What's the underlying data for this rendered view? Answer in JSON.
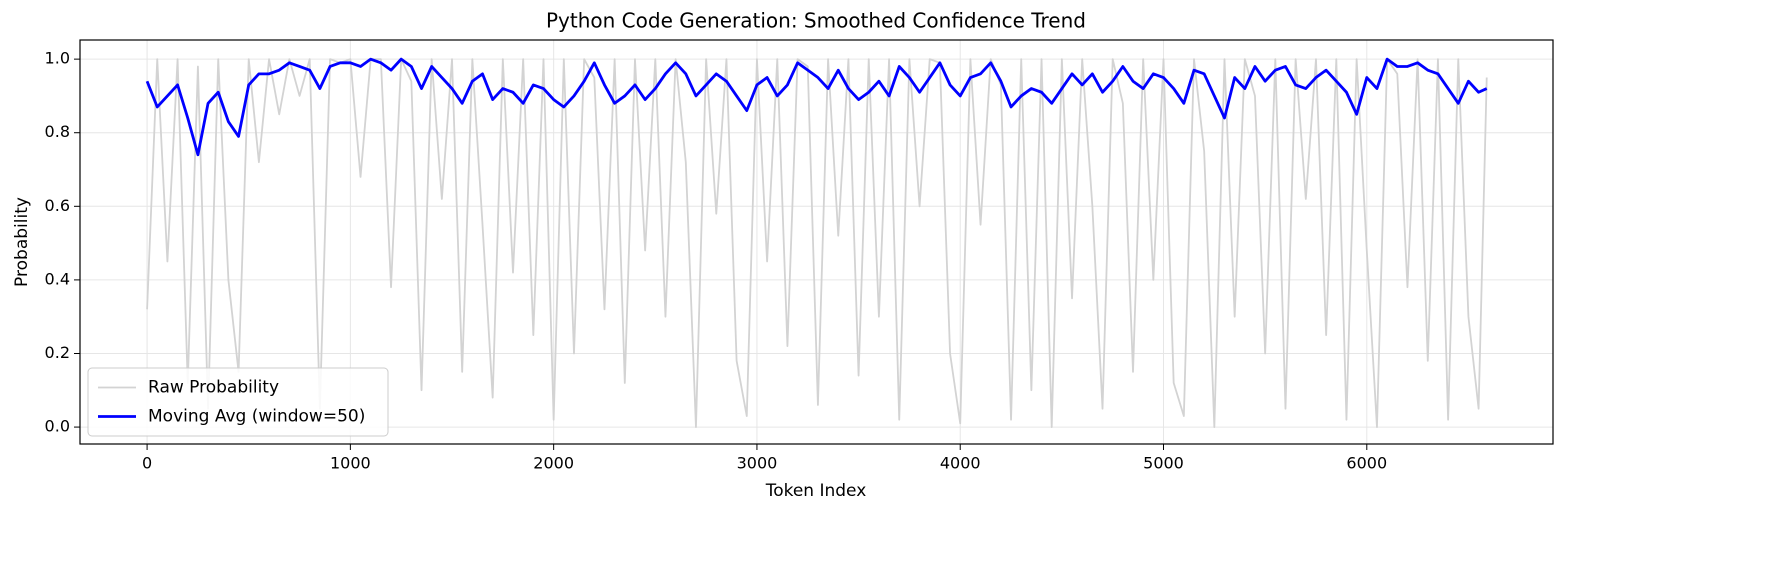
{
  "chart_data": {
    "type": "line",
    "title": "Python Code Generation: Smoothed Confidence Trend",
    "x_label": "Token Index",
    "y_label": "Probability",
    "x": [
      0,
      50,
      100,
      150,
      200,
      250,
      300,
      350,
      400,
      450,
      500,
      550,
      600,
      650,
      700,
      750,
      800,
      850,
      900,
      950,
      1000,
      1050,
      1100,
      1150,
      1200,
      1250,
      1300,
      1350,
      1400,
      1450,
      1500,
      1550,
      1600,
      1650,
      1700,
      1750,
      1800,
      1850,
      1900,
      1950,
      2000,
      2050,
      2100,
      2150,
      2200,
      2250,
      2300,
      2350,
      2400,
      2450,
      2500,
      2550,
      2600,
      2650,
      2700,
      2750,
      2800,
      2850,
      2900,
      2950,
      3000,
      3050,
      3100,
      3150,
      3200,
      3250,
      3300,
      3350,
      3400,
      3450,
      3500,
      3550,
      3600,
      3650,
      3700,
      3750,
      3800,
      3850,
      3900,
      3950,
      4000,
      4050,
      4100,
      4150,
      4200,
      4250,
      4300,
      4350,
      4400,
      4450,
      4500,
      4550,
      4600,
      4650,
      4700,
      4750,
      4800,
      4850,
      4900,
      4950,
      5000,
      5050,
      5100,
      5150,
      5200,
      5250,
      5300,
      5350,
      5400,
      5450,
      5500,
      5550,
      5600,
      5650,
      5700,
      5750,
      5800,
      5850,
      5900,
      5950,
      6000,
      6050,
      6100,
      6150,
      6200,
      6250,
      6300,
      6350,
      6400,
      6450,
      6500,
      6550,
      6590
    ],
    "series": [
      {
        "name": "Raw Probability",
        "color": "#d3d3d3",
        "values": [
          0.32,
          1.0,
          0.45,
          1.0,
          0.12,
          0.98,
          0.05,
          1.0,
          0.4,
          0.15,
          1.0,
          0.72,
          1.0,
          0.85,
          1.0,
          0.9,
          1.0,
          0.05,
          1.0,
          0.99,
          1.0,
          0.68,
          1.0,
          1.0,
          0.38,
          1.0,
          0.94,
          0.1,
          1.0,
          0.62,
          1.0,
          0.15,
          1.0,
          0.55,
          0.08,
          1.0,
          0.42,
          1.0,
          0.25,
          1.0,
          0.02,
          1.0,
          0.2,
          1.0,
          0.95,
          0.32,
          1.0,
          0.12,
          1.0,
          0.48,
          1.0,
          0.3,
          1.0,
          0.72,
          0.0,
          1.0,
          0.58,
          1.0,
          0.18,
          0.03,
          1.0,
          0.45,
          1.0,
          0.22,
          1.0,
          0.98,
          0.06,
          1.0,
          0.52,
          1.0,
          0.14,
          1.0,
          0.3,
          1.0,
          0.02,
          1.0,
          0.6,
          1.0,
          0.99,
          0.2,
          0.01,
          1.0,
          0.55,
          1.0,
          0.93,
          0.02,
          1.0,
          0.1,
          1.0,
          0.0,
          1.0,
          0.35,
          1.0,
          0.6,
          0.05,
          1.0,
          0.88,
          0.15,
          1.0,
          0.4,
          1.0,
          0.12,
          0.03,
          1.0,
          0.75,
          0.0,
          1.0,
          0.3,
          1.0,
          0.9,
          0.2,
          1.0,
          0.05,
          1.0,
          0.62,
          1.0,
          0.25,
          1.0,
          0.02,
          1.0,
          0.48,
          0.0,
          1.0,
          0.96,
          0.38,
          1.0,
          0.18,
          1.0,
          0.02,
          1.0,
          0.3,
          0.05,
          0.95
        ]
      },
      {
        "name": "Moving Avg (window=50)",
        "color": "#0000ff",
        "values": [
          0.94,
          0.87,
          0.9,
          0.93,
          0.84,
          0.74,
          0.88,
          0.91,
          0.83,
          0.79,
          0.93,
          0.96,
          0.96,
          0.97,
          0.99,
          0.98,
          0.97,
          0.92,
          0.98,
          0.99,
          0.99,
          0.98,
          1.0,
          0.99,
          0.97,
          1.0,
          0.98,
          0.92,
          0.98,
          0.95,
          0.92,
          0.88,
          0.94,
          0.96,
          0.89,
          0.92,
          0.91,
          0.88,
          0.93,
          0.92,
          0.89,
          0.87,
          0.9,
          0.94,
          0.99,
          0.93,
          0.88,
          0.9,
          0.93,
          0.89,
          0.92,
          0.96,
          0.99,
          0.96,
          0.9,
          0.93,
          0.96,
          0.94,
          0.9,
          0.86,
          0.93,
          0.95,
          0.9,
          0.93,
          0.99,
          0.97,
          0.95,
          0.92,
          0.97,
          0.92,
          0.89,
          0.91,
          0.94,
          0.9,
          0.98,
          0.95,
          0.91,
          0.95,
          0.99,
          0.93,
          0.9,
          0.95,
          0.96,
          0.99,
          0.94,
          0.87,
          0.9,
          0.92,
          0.91,
          0.88,
          0.92,
          0.96,
          0.93,
          0.96,
          0.91,
          0.94,
          0.98,
          0.94,
          0.92,
          0.96,
          0.95,
          0.92,
          0.88,
          0.97,
          0.96,
          0.9,
          0.84,
          0.95,
          0.92,
          0.98,
          0.94,
          0.97,
          0.98,
          0.93,
          0.92,
          0.95,
          0.97,
          0.94,
          0.91,
          0.85,
          0.95,
          0.92,
          1.0,
          0.98,
          0.98,
          0.99,
          0.97,
          0.96,
          0.92,
          0.88,
          0.94,
          0.91,
          0.92
        ]
      }
    ],
    "xlim": [
      -330,
      6916
    ],
    "ylim": [
      -0.046,
      1.052
    ],
    "xticks": [
      0,
      1000,
      2000,
      3000,
      4000,
      5000,
      6000
    ],
    "yticks": [
      {
        "value": 0,
        "label": "0.0"
      },
      0.2,
      0.4,
      0.6,
      0.8,
      {
        "value": 1,
        "label": "1.0"
      }
    ],
    "grid": true,
    "legend": "lower left"
  }
}
